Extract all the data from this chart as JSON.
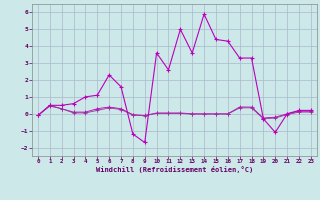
{
  "xlabel": "Windchill (Refroidissement éolien,°C)",
  "background_color": "#cce8e8",
  "grid_color": "#aab8cc",
  "line_color": "#bb00bb",
  "line_color2": "#993399",
  "xlim": [
    -0.5,
    23.5
  ],
  "ylim": [
    -2.5,
    6.5
  ],
  "yticks": [
    -2,
    -1,
    0,
    1,
    2,
    3,
    4,
    5,
    6
  ],
  "xticks": [
    0,
    1,
    2,
    3,
    4,
    5,
    6,
    7,
    8,
    9,
    10,
    11,
    12,
    13,
    14,
    15,
    16,
    17,
    18,
    19,
    20,
    21,
    22,
    23
  ],
  "series0": {
    "x": [
      0,
      1,
      2,
      3,
      4,
      5,
      6,
      7,
      8,
      9,
      10,
      11,
      12,
      13,
      14,
      15,
      16,
      17,
      18,
      19,
      20,
      21,
      22,
      23
    ],
    "y": [
      -0.1,
      0.5,
      0.5,
      0.6,
      1.0,
      1.1,
      2.3,
      1.6,
      -1.2,
      -1.7,
      3.6,
      2.6,
      5.0,
      3.6,
      5.9,
      4.4,
      4.3,
      3.3,
      3.3,
      -0.3,
      -1.1,
      0.0,
      0.2,
      0.2
    ]
  },
  "series1": {
    "x": [
      0,
      1,
      2,
      3,
      4,
      5,
      6,
      7,
      8,
      9,
      10,
      11,
      12,
      13,
      14,
      15,
      16,
      17,
      18,
      19,
      20,
      21,
      22,
      23
    ],
    "y": [
      -0.1,
      0.5,
      0.3,
      0.1,
      0.1,
      0.3,
      0.4,
      0.3,
      -0.05,
      -0.1,
      0.05,
      0.05,
      0.05,
      0.0,
      0.0,
      0.0,
      0.0,
      0.4,
      0.4,
      -0.25,
      -0.2,
      0.0,
      0.15,
      0.15
    ]
  },
  "series2": {
    "x": [
      0,
      1,
      2,
      3,
      4,
      5,
      6,
      7,
      8,
      9,
      10,
      11,
      12,
      13,
      14,
      15,
      16,
      17,
      18,
      19,
      20,
      21,
      22,
      23
    ],
    "y": [
      -0.1,
      0.45,
      0.3,
      0.05,
      0.05,
      0.2,
      0.35,
      0.25,
      -0.08,
      -0.12,
      0.02,
      0.02,
      0.02,
      -0.02,
      -0.02,
      -0.02,
      -0.02,
      0.35,
      0.35,
      -0.3,
      -0.25,
      -0.05,
      0.1,
      0.1
    ]
  }
}
